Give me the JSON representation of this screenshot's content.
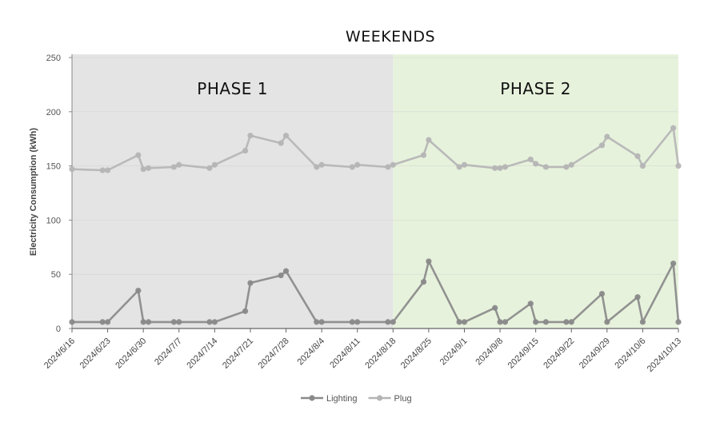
{
  "chart_data": {
    "type": "line",
    "title": "WEEKENDS",
    "ylabel": "Electricity Consumption (kWh)",
    "xlabel": "",
    "ylim": [
      0,
      250
    ],
    "y_ticks": [
      0,
      50,
      100,
      150,
      200,
      250
    ],
    "x_range": [
      "2024-06-16",
      "2024-10-13"
    ],
    "x_ticks": [
      "2024/6/16",
      "2024/6/23",
      "2024/6/30",
      "2024/7/7",
      "2024/7/14",
      "2024/7/21",
      "2024/7/28",
      "2024/8/4",
      "2024/8/11",
      "2024/8/18",
      "2024/8/25",
      "2024/9/1",
      "2024/9/8",
      "2024/9/15",
      "2024/9/22",
      "2024/9/29",
      "2024/10/6",
      "2024/10/13"
    ],
    "grid": true,
    "legend_position": "bottom",
    "phases": [
      {
        "label": "PHASE 1",
        "start": "2024-06-16",
        "end": "2024-08-18",
        "color": "#e4e4e4"
      },
      {
        "label": "PHASE 2",
        "start": "2024-08-18",
        "end": "2024-10-13",
        "color": "#e7f2dc"
      }
    ],
    "series": [
      {
        "name": "Lighting",
        "color": "#8a8a8a",
        "points": [
          [
            "2024-06-16",
            6
          ],
          [
            "2024-06-22",
            6
          ],
          [
            "2024-06-23",
            6
          ],
          [
            "2024-06-29",
            35
          ],
          [
            "2024-06-30",
            6
          ],
          [
            "2024-07-01",
            6
          ],
          [
            "2024-07-06",
            6
          ],
          [
            "2024-07-07",
            6
          ],
          [
            "2024-07-13",
            6
          ],
          [
            "2024-07-14",
            6
          ],
          [
            "2024-07-20",
            16
          ],
          [
            "2024-07-21",
            42
          ],
          [
            "2024-07-27",
            49
          ],
          [
            "2024-07-28",
            53
          ],
          [
            "2024-08-03",
            6
          ],
          [
            "2024-08-04",
            6
          ],
          [
            "2024-08-10",
            6
          ],
          [
            "2024-08-11",
            6
          ],
          [
            "2024-08-17",
            6
          ],
          [
            "2024-08-18",
            6
          ],
          [
            "2024-08-24",
            43
          ],
          [
            "2024-08-25",
            62
          ],
          [
            "2024-08-31",
            6
          ],
          [
            "2024-09-01",
            6
          ],
          [
            "2024-09-07",
            19
          ],
          [
            "2024-09-08",
            6
          ],
          [
            "2024-09-09",
            6
          ],
          [
            "2024-09-14",
            23
          ],
          [
            "2024-09-15",
            6
          ],
          [
            "2024-09-17",
            6
          ],
          [
            "2024-09-21",
            6
          ],
          [
            "2024-09-22",
            6
          ],
          [
            "2024-09-28",
            32
          ],
          [
            "2024-09-29",
            6
          ],
          [
            "2024-10-05",
            29
          ],
          [
            "2024-10-06",
            6
          ],
          [
            "2024-10-12",
            60
          ],
          [
            "2024-10-13",
            6
          ]
        ]
      },
      {
        "name": "Plug",
        "color": "#b5b5b5",
        "points": [
          [
            "2024-06-16",
            147
          ],
          [
            "2024-06-22",
            146
          ],
          [
            "2024-06-23",
            146
          ],
          [
            "2024-06-29",
            160
          ],
          [
            "2024-06-30",
            147
          ],
          [
            "2024-07-01",
            148
          ],
          [
            "2024-07-06",
            149
          ],
          [
            "2024-07-07",
            151
          ],
          [
            "2024-07-13",
            148
          ],
          [
            "2024-07-14",
            151
          ],
          [
            "2024-07-20",
            164
          ],
          [
            "2024-07-21",
            178
          ],
          [
            "2024-07-27",
            171
          ],
          [
            "2024-07-28",
            178
          ],
          [
            "2024-08-03",
            149
          ],
          [
            "2024-08-04",
            151
          ],
          [
            "2024-08-10",
            149
          ],
          [
            "2024-08-11",
            151
          ],
          [
            "2024-08-17",
            149
          ],
          [
            "2024-08-18",
            151
          ],
          [
            "2024-08-24",
            160
          ],
          [
            "2024-08-25",
            174
          ],
          [
            "2024-08-31",
            149
          ],
          [
            "2024-09-01",
            151
          ],
          [
            "2024-09-07",
            148
          ],
          [
            "2024-09-08",
            148
          ],
          [
            "2024-09-09",
            149
          ],
          [
            "2024-09-14",
            156
          ],
          [
            "2024-09-15",
            152
          ],
          [
            "2024-09-17",
            149
          ],
          [
            "2024-09-21",
            149
          ],
          [
            "2024-09-22",
            151
          ],
          [
            "2024-09-28",
            169
          ],
          [
            "2024-09-29",
            177
          ],
          [
            "2024-10-05",
            159
          ],
          [
            "2024-10-06",
            150
          ],
          [
            "2024-10-12",
            185
          ],
          [
            "2024-10-13",
            150
          ]
        ]
      }
    ]
  }
}
